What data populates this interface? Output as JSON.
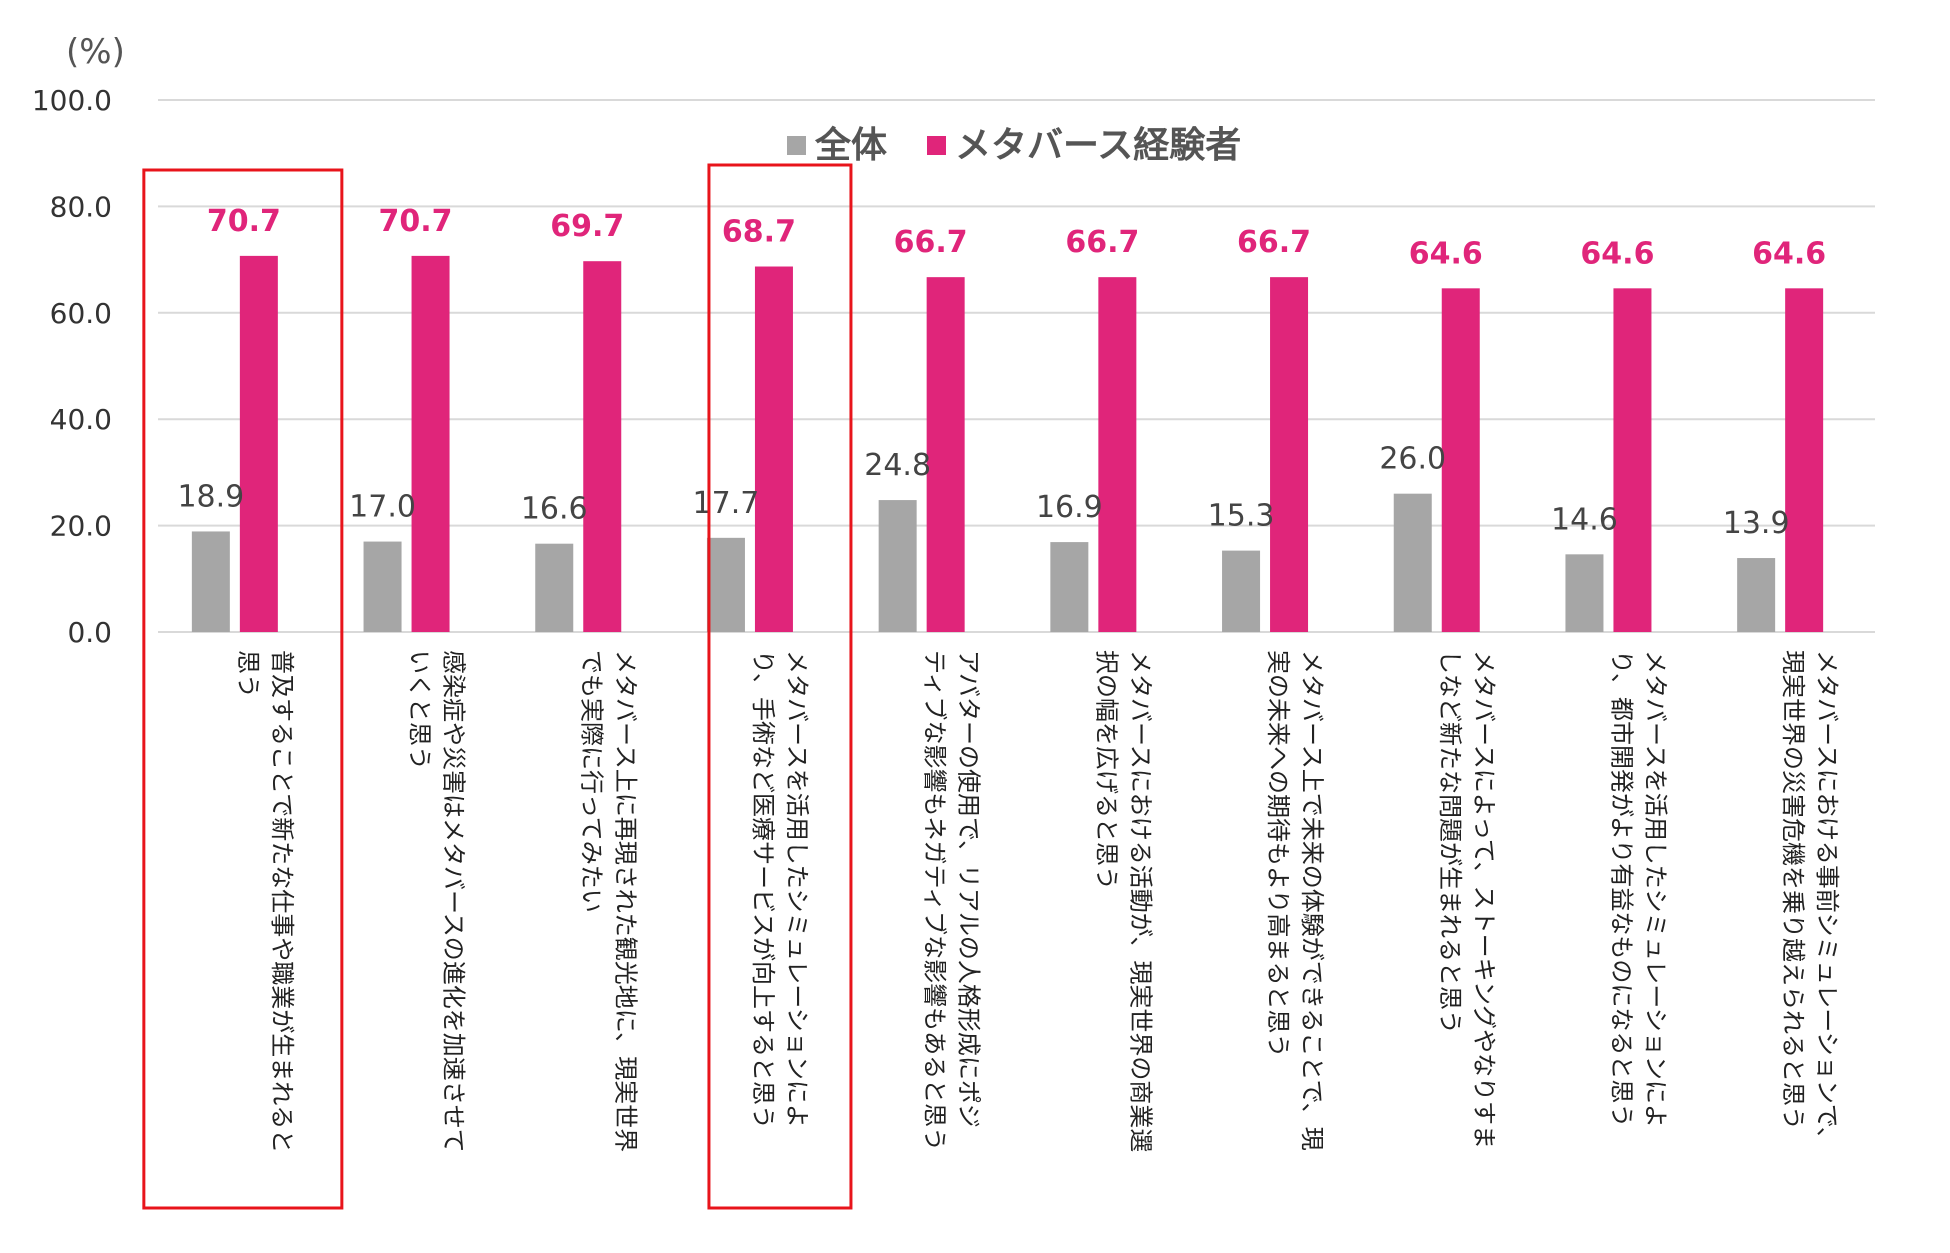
{
  "chart_data": {
    "type": "bar",
    "unit_label": "(%)",
    "ylim": [
      0,
      100
    ],
    "y_ticks": [
      "0.0",
      "20.0",
      "40.0",
      "60.0",
      "80.0",
      "100.0"
    ],
    "grid": true,
    "legend_position": "top-center",
    "categories": [
      {
        "lines": [
          "普及することで新たな仕事や職業が生まれると",
          "思う"
        ],
        "highlighted": true
      },
      {
        "lines": [
          "感染症や災害はメタバースの進化を加速させて",
          "いくと思う"
        ],
        "highlighted": false
      },
      {
        "lines": [
          "メタバース上に再現された観光地に、現実世界",
          "でも実際に行ってみたい"
        ],
        "highlighted": false
      },
      {
        "lines": [
          "メタバースを活用したシミュレーションによ",
          "り、手術など医療サービスが向上すると思う"
        ],
        "highlighted": true
      },
      {
        "lines": [
          "アバターの使用で、リアルの人格形成にポジ",
          "ティブな影響もネガティブな影響もあると思う"
        ],
        "highlighted": false
      },
      {
        "lines": [
          "メタバースにおける活動が、現実世界の商業選",
          "択の幅を広げると思う"
        ],
        "highlighted": false
      },
      {
        "lines": [
          "メタバース上で未来の体験ができることで、現",
          "実の未来への期待もより高まると思う"
        ],
        "highlighted": false
      },
      {
        "lines": [
          "メタバースによって、ストーキングやなりすま",
          "しなど新たな問題が生まれると思う"
        ],
        "highlighted": false
      },
      {
        "lines": [
          "メタバースを活用したシミュレーションによ",
          "り、都市開発がより有益なものになると思う"
        ],
        "highlighted": false
      },
      {
        "lines": [
          "メタバースにおける事前シミュレーションで、",
          "現実世界の災害危機を乗り越えられると思う"
        ],
        "highlighted": false
      }
    ],
    "series": [
      {
        "name": "全体",
        "color": "#a6a6a6",
        "values": [
          18.9,
          17.0,
          16.6,
          17.7,
          24.8,
          16.9,
          15.3,
          26.0,
          14.6,
          13.9
        ],
        "labels": [
          "18.9",
          "17.0",
          "16.6",
          "17.7",
          "24.8",
          "16.9",
          "15.3",
          "26.0",
          "14.6",
          "13.9"
        ]
      },
      {
        "name": "メタバース経験者",
        "color": "#e0257a",
        "values": [
          70.7,
          70.7,
          69.7,
          68.7,
          66.7,
          66.7,
          66.7,
          64.6,
          64.6,
          64.6
        ],
        "labels": [
          "70.7",
          "70.7",
          "69.7",
          "68.7",
          "66.7",
          "66.7",
          "66.7",
          "64.6",
          "64.6",
          "64.6"
        ]
      }
    ],
    "highlight_color": "#e8141b",
    "grid_color": "#d9d9d9"
  }
}
